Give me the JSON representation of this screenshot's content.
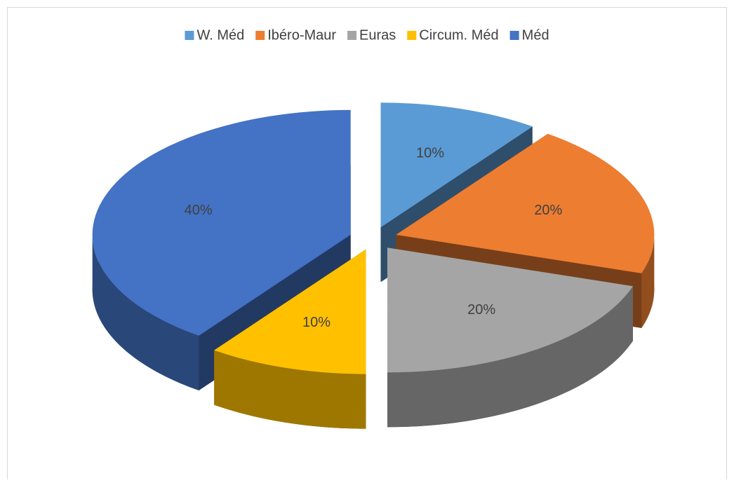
{
  "chart_data": {
    "type": "pie",
    "three_d": true,
    "exploded": true,
    "categories": [
      "W. Méd",
      "Ibéro-Maur",
      "Euras",
      "Circum. Méd",
      "Méd"
    ],
    "values": [
      10,
      20,
      20,
      10,
      40
    ],
    "value_labels": [
      "10%",
      "20%",
      "20%",
      "10%",
      "40%"
    ],
    "colors": [
      "#5b9bd5",
      "#ed7d31",
      "#a5a5a5",
      "#ffc000",
      "#4472c4"
    ],
    "legend": "top"
  }
}
